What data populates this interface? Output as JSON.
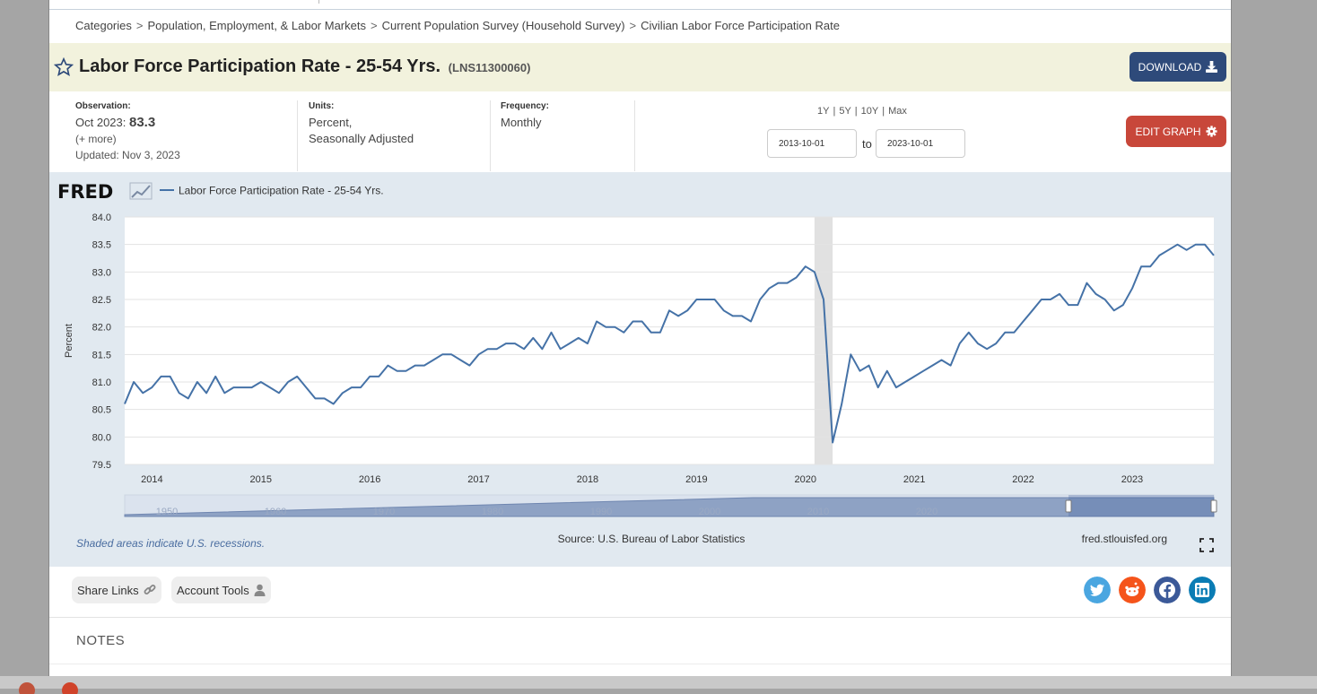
{
  "breadcrumb": {
    "items": [
      "Categories",
      "Population, Employment, & Labor Markets",
      "Current Population Survey (Household Survey)",
      "Civilian Labor Force Participation Rate"
    ],
    "separator": ">"
  },
  "header": {
    "title": "Labor Force Participation Rate - 25-54 Yrs.",
    "series_id": "(LNS11300060)",
    "download_label": "DOWNLOAD"
  },
  "meta": {
    "observation_label": "Observation:",
    "observation_date": "Oct 2023:",
    "observation_value": "83.3",
    "more": "(+ more)",
    "updated": "Updated: Nov 3, 2023",
    "units_label": "Units:",
    "units_line1": "Percent,",
    "units_line2": "Seasonally Adjusted",
    "frequency_label": "Frequency:",
    "frequency_value": "Monthly"
  },
  "range": {
    "options": [
      "1Y",
      "5Y",
      "10Y",
      "Max"
    ],
    "start_date": "2013-10-01",
    "end_date": "2023-10-01",
    "to_label": "to",
    "edit_label": "EDIT GRAPH"
  },
  "chart_meta": {
    "logo": "FRED",
    "recession_note": "Shaded areas indicate U.S. recessions.",
    "source": "Source: U.S. Bureau of Labor Statistics",
    "site": "fred.stlouisfed.org",
    "navigator_years": [
      "1950",
      "1960",
      "1970",
      "1980",
      "1990",
      "2000",
      "2010",
      "2020"
    ]
  },
  "chart_data": {
    "type": "line",
    "ylabel": "Percent",
    "ylim": [
      79.5,
      84.0
    ],
    "yticks": [
      "84.0",
      "83.5",
      "83.0",
      "82.5",
      "82.0",
      "81.5",
      "81.0",
      "80.5",
      "80.0",
      "79.5"
    ],
    "xticks": [
      "2014",
      "2015",
      "2016",
      "2017",
      "2018",
      "2019",
      "2020",
      "2021",
      "2022",
      "2023"
    ],
    "x_range": [
      "2013-10",
      "2023-10"
    ],
    "grid": true,
    "recessions": [
      {
        "start": "2020-02",
        "end": "2020-04"
      }
    ],
    "series": [
      {
        "name": "Labor Force Participation Rate - 25-54 Yrs.",
        "color": "#4572a7",
        "x": [
          "2013-10",
          "2013-11",
          "2013-12",
          "2014-01",
          "2014-02",
          "2014-03",
          "2014-04",
          "2014-05",
          "2014-06",
          "2014-07",
          "2014-08",
          "2014-09",
          "2014-10",
          "2014-11",
          "2014-12",
          "2015-01",
          "2015-02",
          "2015-03",
          "2015-04",
          "2015-05",
          "2015-06",
          "2015-07",
          "2015-08",
          "2015-09",
          "2015-10",
          "2015-11",
          "2015-12",
          "2016-01",
          "2016-02",
          "2016-03",
          "2016-04",
          "2016-05",
          "2016-06",
          "2016-07",
          "2016-08",
          "2016-09",
          "2016-10",
          "2016-11",
          "2016-12",
          "2017-01",
          "2017-02",
          "2017-03",
          "2017-04",
          "2017-05",
          "2017-06",
          "2017-07",
          "2017-08",
          "2017-09",
          "2017-10",
          "2017-11",
          "2017-12",
          "2018-01",
          "2018-02",
          "2018-03",
          "2018-04",
          "2018-05",
          "2018-06",
          "2018-07",
          "2018-08",
          "2018-09",
          "2018-10",
          "2018-11",
          "2018-12",
          "2019-01",
          "2019-02",
          "2019-03",
          "2019-04",
          "2019-05",
          "2019-06",
          "2019-07",
          "2019-08",
          "2019-09",
          "2019-10",
          "2019-11",
          "2019-12",
          "2020-01",
          "2020-02",
          "2020-03",
          "2020-04",
          "2020-05",
          "2020-06",
          "2020-07",
          "2020-08",
          "2020-09",
          "2020-10",
          "2020-11",
          "2020-12",
          "2021-01",
          "2021-02",
          "2021-03",
          "2021-04",
          "2021-05",
          "2021-06",
          "2021-07",
          "2021-08",
          "2021-09",
          "2021-10",
          "2021-11",
          "2021-12",
          "2022-01",
          "2022-02",
          "2022-03",
          "2022-04",
          "2022-05",
          "2022-06",
          "2022-07",
          "2022-08",
          "2022-09",
          "2022-10",
          "2022-11",
          "2022-12",
          "2023-01",
          "2023-02",
          "2023-03",
          "2023-04",
          "2023-05",
          "2023-06",
          "2023-07",
          "2023-08",
          "2023-09",
          "2023-10"
        ],
        "values": [
          80.6,
          81.0,
          80.8,
          80.9,
          81.1,
          81.1,
          80.8,
          80.7,
          81.0,
          80.8,
          81.1,
          80.8,
          80.9,
          80.9,
          80.9,
          81.0,
          80.9,
          80.8,
          81.0,
          81.1,
          80.9,
          80.7,
          80.7,
          80.6,
          80.8,
          80.9,
          80.9,
          81.1,
          81.1,
          81.3,
          81.2,
          81.2,
          81.3,
          81.3,
          81.4,
          81.5,
          81.5,
          81.4,
          81.3,
          81.5,
          81.6,
          81.6,
          81.7,
          81.7,
          81.6,
          81.8,
          81.6,
          81.9,
          81.6,
          81.7,
          81.8,
          81.7,
          82.1,
          82.0,
          82.0,
          81.9,
          82.1,
          82.1,
          81.9,
          81.9,
          82.3,
          82.2,
          82.3,
          82.5,
          82.5,
          82.5,
          82.3,
          82.2,
          82.2,
          82.1,
          82.5,
          82.7,
          82.8,
          82.8,
          82.9,
          83.1,
          83.0,
          82.5,
          79.9,
          80.6,
          81.5,
          81.2,
          81.3,
          80.9,
          81.2,
          80.9,
          81.0,
          81.1,
          81.2,
          81.3,
          81.4,
          81.3,
          81.7,
          81.9,
          81.7,
          81.6,
          81.7,
          81.9,
          81.9,
          82.1,
          82.3,
          82.5,
          82.5,
          82.6,
          82.4,
          82.4,
          82.8,
          82.6,
          82.5,
          82.3,
          82.4,
          82.7,
          83.1,
          83.1,
          83.3,
          83.4,
          83.5,
          83.4,
          83.5,
          83.5,
          83.3
        ]
      }
    ]
  },
  "actions": {
    "share_label": "Share Links",
    "account_label": "Account Tools"
  },
  "social": [
    "twitter-icon",
    "reddit-icon",
    "facebook-icon",
    "linkedin-icon"
  ],
  "notes": {
    "label": "NOTES"
  },
  "colors": {
    "title_bg": "#f2f2dd",
    "chart_bg": "#e1e9f0",
    "line": "#4572a7",
    "download_btn": "#2e4a7a",
    "edit_btn": "#c8473a",
    "twitter": "#4aa6e0",
    "reddit": "#f5541b",
    "facebook": "#3b5998",
    "linkedin": "#0a7cb4"
  }
}
